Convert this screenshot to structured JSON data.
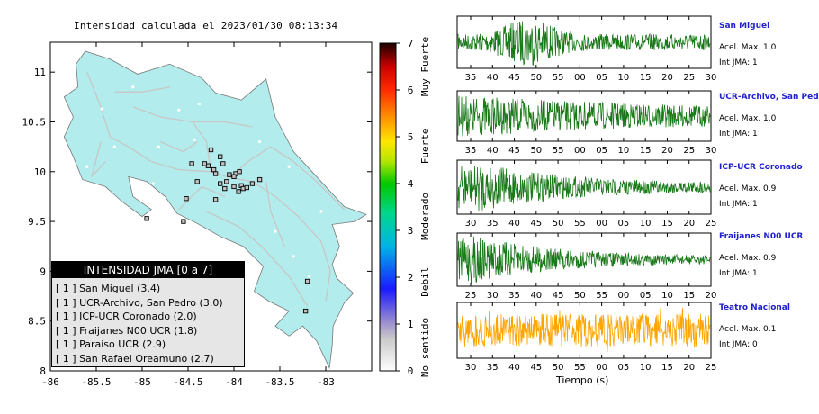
{
  "map": {
    "title": "Intensidad calculada el 2023/01/30_08:13:34",
    "x_ticks": [
      "-86",
      "-85.5",
      "-85",
      "-84.5",
      "-84",
      "-83.5",
      "-83"
    ],
    "y_ticks": [
      "11",
      "10.5",
      "10",
      "9.5",
      "9",
      "8.5",
      "8"
    ],
    "colors": {
      "land": "#b3eced",
      "roads": "#c7c7c7",
      "border": "#777777"
    }
  },
  "colorbar": {
    "ticks": [
      "0",
      "1",
      "2",
      "3",
      "4",
      "5",
      "6",
      "7"
    ],
    "labels": [
      "No sentido",
      "Debil",
      "Moderado",
      "Fuerte",
      "Muy Fuerte"
    ]
  },
  "legend": {
    "title": "INTENSIDAD JMA [0 a 7]",
    "items": [
      {
        "bracket": "[ 1 ]",
        "text": "San Miguel (3.4)"
      },
      {
        "bracket": "[ 1 ]",
        "text": "UCR-Archivo, San Pedro (3.0)"
      },
      {
        "bracket": "[ 1 ]",
        "text": "ICP-UCR Coronado (2.0)"
      },
      {
        "bracket": "[ 1 ]",
        "text": "Fraijanes N00 UCR (1.8)"
      },
      {
        "bracket": "[ 1 ]",
        "text": "Paraiso UCR (2.9)"
      },
      {
        "bracket": "[ 1 ]",
        "text": "San Rafael Oreamuno (2.7)"
      }
    ]
  },
  "traces": [
    {
      "name": "San Miguel",
      "acel": "Acel. Max. 1.0",
      "int": "Int JMA: 1",
      "color": "#1a7a1a",
      "ticks": [
        "35",
        "40",
        "45",
        "50",
        "55",
        "00",
        "05",
        "10",
        "15",
        "20",
        "25",
        "30"
      ]
    },
    {
      "name": "UCR-Archivo, San Pedro",
      "acel": "Acel. Max. 1.0",
      "int": "Int JMA: 1",
      "color": "#1a7a1a",
      "ticks": [
        "35",
        "40",
        "45",
        "50",
        "55",
        "00",
        "05",
        "10",
        "15",
        "20",
        "25",
        "30"
      ]
    },
    {
      "name": "ICP-UCR Coronado",
      "acel": "Acel. Max. 0.9",
      "int": "Int JMA: 1",
      "color": "#1a7a1a",
      "ticks": [
        "30",
        "35",
        "40",
        "45",
        "50",
        "55",
        "00",
        "05",
        "10",
        "15",
        "20",
        "25"
      ]
    },
    {
      "name": "Fraijanes N00 UCR",
      "acel": "Acel. Max. 0.9",
      "int": "Int JMA: 1",
      "color": "#1a7a1a",
      "ticks": [
        "25",
        "30",
        "35",
        "40",
        "45",
        "50",
        "55",
        "00",
        "05",
        "10",
        "15",
        "20"
      ]
    },
    {
      "name": "Teatro Nacional",
      "acel": "Acel. Max. 0.1",
      "int": "Int JMA: 0",
      "color": "#ffa500",
      "ticks": [
        "30",
        "35",
        "40",
        "45",
        "50",
        "55",
        "00",
        "05",
        "10",
        "15",
        "20",
        "25"
      ]
    }
  ],
  "xaxis_label": "Tiempo (s)",
  "chart_data": [
    {
      "type": "scatter",
      "title": "Intensidad calculada el 2023/01/30_08:13:34",
      "xlabel": "",
      "ylabel": "",
      "xlim": [
        -86,
        -82.5
      ],
      "ylim": [
        8,
        11.3
      ],
      "points": [
        {
          "x": -84.25,
          "y": 10.22
        },
        {
          "x": -84.15,
          "y": 10.15
        },
        {
          "x": -84.28,
          "y": 10.06
        },
        {
          "x": -84.22,
          "y": 10.02
        },
        {
          "x": -84.2,
          "y": 9.98
        },
        {
          "x": -84.12,
          "y": 10.08
        },
        {
          "x": -84.05,
          "y": 9.97
        },
        {
          "x": -83.98,
          "y": 9.98
        },
        {
          "x": -83.94,
          "y": 10.0
        },
        {
          "x": -84.0,
          "y": 9.95
        },
        {
          "x": -84.08,
          "y": 9.9
        },
        {
          "x": -84.15,
          "y": 9.88
        },
        {
          "x": -84.1,
          "y": 9.83
        },
        {
          "x": -84.4,
          "y": 9.9
        },
        {
          "x": -84.32,
          "y": 10.08
        },
        {
          "x": -83.92,
          "y": 9.86
        },
        {
          "x": -83.9,
          "y": 9.83
        },
        {
          "x": -83.86,
          "y": 9.84
        },
        {
          "x": -83.8,
          "y": 9.88
        },
        {
          "x": -83.72,
          "y": 9.92
        },
        {
          "x": -84.52,
          "y": 9.73
        },
        {
          "x": -84.95,
          "y": 9.53
        },
        {
          "x": -84.55,
          "y": 9.5
        },
        {
          "x": -84.2,
          "y": 9.72
        },
        {
          "x": -83.95,
          "y": 9.8
        },
        {
          "x": -84.0,
          "y": 9.85
        },
        {
          "x": -84.46,
          "y": 10.08
        },
        {
          "x": -83.2,
          "y": 8.9
        },
        {
          "x": -83.22,
          "y": 8.6
        }
      ]
    },
    {
      "type": "line",
      "title": "",
      "xlabel": "Tiempo (s)",
      "ylabel": "",
      "series": [
        {
          "name": "San Miguel",
          "peak": 1.0
        },
        {
          "name": "UCR-Archivo, San Pedro",
          "peak": 1.0
        },
        {
          "name": "ICP-UCR Coronado",
          "peak": 0.9
        },
        {
          "name": "Fraijanes N00 UCR",
          "peak": 0.9
        },
        {
          "name": "Teatro Nacional",
          "peak": 0.1
        }
      ]
    }
  ]
}
